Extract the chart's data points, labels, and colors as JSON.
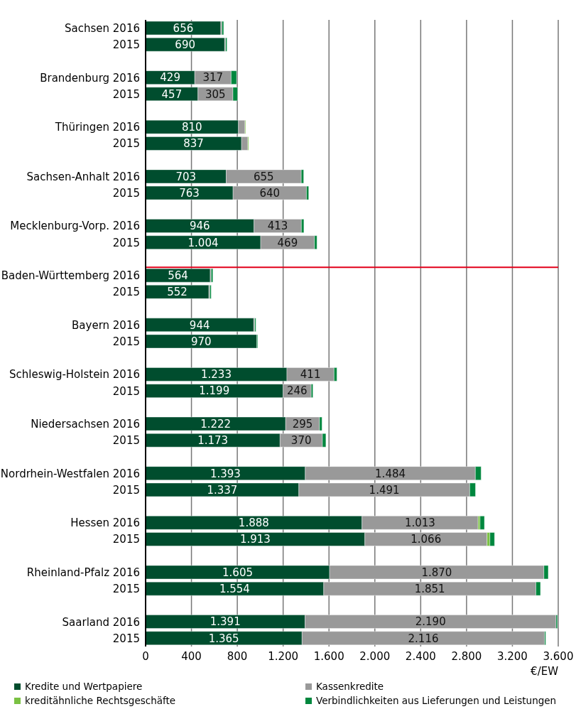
{
  "chart_data": {
    "type": "bar",
    "orientation": "horizontal",
    "stacked": true,
    "xlabel": "€/EW",
    "categories": [
      "Sachsen 2016",
      "2015",
      null,
      "Brandenburg 2016",
      "2015",
      null,
      "Thüringen 2016",
      "2015",
      null,
      "Sachsen-Anhalt 2016",
      "2015",
      null,
      "Mecklenburg-Vorp. 2016",
      "2015",
      null,
      "Baden-Württemberg 2016",
      "2015",
      null,
      "Bayern 2016",
      "2015",
      null,
      "Schleswig-Holstein 2016",
      "2015",
      null,
      "Niedersachsen 2016",
      "2015",
      null,
      "Nordrhein-Westfalen 2016",
      "2015",
      null,
      "Hessen 2016",
      "2015",
      null,
      "Rheinland-Pfalz 2016",
      "2015",
      null,
      "Saarland 2016",
      "2015"
    ],
    "series": [
      {
        "name": "Kredite und Wertpapiere",
        "color": "#004d2e",
        "values": [
          656,
          690,
          null,
          429,
          457,
          null,
          810,
          837,
          null,
          703,
          763,
          null,
          946,
          1004,
          null,
          564,
          552,
          null,
          944,
          970,
          null,
          1233,
          1199,
          null,
          1222,
          1173,
          null,
          1393,
          1337,
          null,
          1888,
          1913,
          null,
          1605,
          1554,
          null,
          1391,
          1365
        ],
        "value_labels": [
          "656",
          "690",
          null,
          "429",
          "457",
          null,
          "810",
          "837",
          null,
          "703",
          "763",
          null,
          "946",
          "1.004",
          null,
          "564",
          "552",
          null,
          "944",
          "970",
          null,
          "1.233",
          "1.199",
          null,
          "1.222",
          "1.173",
          null,
          "1.393",
          "1.337",
          null,
          "1.888",
          "1.913",
          null,
          "1.605",
          "1.554",
          null,
          "1.391",
          "1.365"
        ]
      },
      {
        "name": "Kassenkredite",
        "color": "#999999",
        "values": [
          10,
          8,
          null,
          317,
          305,
          null,
          57,
          55,
          null,
          655,
          640,
          null,
          413,
          469,
          null,
          8,
          8,
          null,
          8,
          0,
          null,
          411,
          246,
          null,
          295,
          370,
          null,
          1484,
          1491,
          null,
          1013,
          1066,
          null,
          1870,
          1851,
          null,
          2190,
          2116
        ],
        "value_labels": [
          null,
          null,
          null,
          "317",
          "305",
          null,
          null,
          null,
          null,
          "655",
          "640",
          null,
          "413",
          "469",
          null,
          null,
          null,
          null,
          null,
          null,
          null,
          "411",
          "246",
          null,
          "295",
          "370",
          null,
          "1.484",
          "1.491",
          null,
          "1.013",
          "1.066",
          null,
          "1.870",
          "1.851",
          null,
          "2.190",
          "2.116"
        ]
      },
      {
        "name": "kreditähnliche Rechtsgeschäfte",
        "color": "#7ac143",
        "values": [
          0,
          0,
          null,
          0,
          0,
          null,
          6,
          7,
          null,
          0,
          0,
          null,
          0,
          0,
          null,
          0,
          0,
          null,
          0,
          0,
          null,
          0,
          0,
          null,
          0,
          0,
          null,
          0,
          0,
          null,
          17,
          25,
          null,
          0,
          0,
          null,
          0,
          0
        ]
      },
      {
        "name": "Verbindlichkeiten aus Lieferungen und Leistungen",
        "color": "#00873e",
        "values": [
          15,
          12,
          null,
          48,
          40,
          null,
          0,
          0,
          null,
          21,
          20,
          null,
          22,
          22,
          null,
          15,
          12,
          null,
          10,
          8,
          null,
          25,
          15,
          null,
          22,
          30,
          null,
          50,
          50,
          null,
          38,
          40,
          null,
          38,
          40,
          null,
          12,
          10
        ]
      }
    ],
    "xlim": [
      0,
      3600
    ],
    "xticks": [
      0,
      400,
      800,
      {
        "value": 1200,
        "label": "1.200"
      },
      {
        "value": 1600,
        "label": "1.600"
      },
      {
        "value": 2000,
        "label": "2.000"
      },
      {
        "value": 2400,
        "label": "2.400"
      },
      {
        "value": 2800,
        "label": "2.800"
      },
      {
        "value": 3200,
        "label": "3.200"
      },
      {
        "value": 3600,
        "label": "3.600"
      }
    ],
    "grid": "x",
    "legend": "bottom",
    "ref_lines": [
      {
        "axis": "y",
        "value": "Baden-Württemberg 2016",
        "color": "#e2001a"
      }
    ]
  }
}
